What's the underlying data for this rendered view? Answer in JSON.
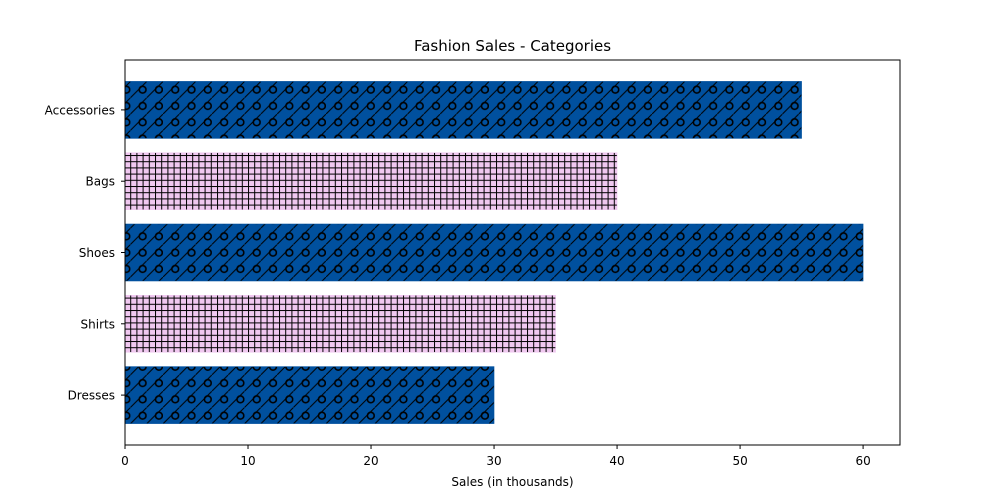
{
  "chart_data": {
    "type": "bar",
    "orientation": "horizontal",
    "title": "Fashion Sales - Categories",
    "xlabel": "Sales (in thousands)",
    "ylabel": "",
    "categories": [
      "Dresses",
      "Shirts",
      "Shoes",
      "Bags",
      "Accessories"
    ],
    "values": [
      30,
      35,
      60,
      40,
      55
    ],
    "xlim": [
      0,
      63
    ],
    "xticks": [
      0,
      10,
      20,
      30,
      40,
      50,
      60
    ],
    "grid": false,
    "bar_styles": [
      {
        "fill": "#00509e",
        "pattern": "diagonal-circles"
      },
      {
        "fill": "#f0c8f0",
        "pattern": "grid"
      },
      {
        "fill": "#00509e",
        "pattern": "diagonal-circles"
      },
      {
        "fill": "#f0c8f0",
        "pattern": "grid"
      },
      {
        "fill": "#00509e",
        "pattern": "diagonal-circles"
      }
    ]
  }
}
